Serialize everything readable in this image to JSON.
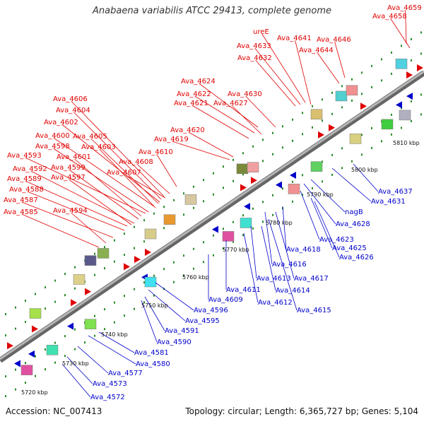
{
  "title": "Anabaena variabilis ATCC 29413, complete genome",
  "footer": {
    "accession": "Accession: NC_007413",
    "summary": "Topology: circular; Length: 6,365,727 bp; Genes: 5,104"
  },
  "colors": {
    "forward": "#e00000",
    "reverse": "#0000cc",
    "backbone": "#8c8c8c",
    "tick": "#2a8a2a"
  },
  "kbp_labels": [
    "5720 kbp",
    "5730 kbp",
    "5740 kbp",
    "5750 kbp",
    "5760 kbp",
    "5770 kbp",
    "5780 kbp",
    "5790 kbp",
    "5800 kbp",
    "5810 kbp"
  ],
  "top_labels": [
    "Ava_4659",
    "Ava_4658",
    "ureE",
    "Ava_4641",
    "Ava_4646",
    "Ava_4633",
    "Ava_4644",
    "Ava_4632",
    "Ava_4624",
    "Ava_4622",
    "Ava_4630",
    "Ava_4621",
    "Ava_4627",
    "Ava_4606",
    "Ava_4604",
    "Ava_4620",
    "Ava_4602",
    "Ava_4619",
    "Ava_4605",
    "Ava_4600",
    "Ava_4603",
    "Ava_4598",
    "Ava_4610",
    "Ava_4593",
    "Ava_4601",
    "Ava_4608",
    "Ava_4599",
    "Ava_4592",
    "Ava_4607",
    "Ava_4589",
    "Ava_4597",
    "Ava_4588",
    "Ava_4587",
    "Ava_4594",
    "Ava_4585"
  ],
  "bottom_labels": [
    "Ava_4637",
    "Ava_4631",
    "nagB",
    "Ava_4628",
    "Ava_4623",
    "Ava_4618",
    "Ava_4625",
    "Ava_4626",
    "Ava_4616",
    "Ava_4617",
    "Ava_4613",
    "Ava_4614",
    "Ava_4611",
    "Ava_4609",
    "Ava_4612",
    "Ava_4615",
    "Ava_4596",
    "Ava_4595",
    "Ava_4591",
    "Ava_4590",
    "Ava_4581",
    "Ava_4580",
    "Ava_4577",
    "Ava_4573",
    "Ava_4572"
  ]
}
